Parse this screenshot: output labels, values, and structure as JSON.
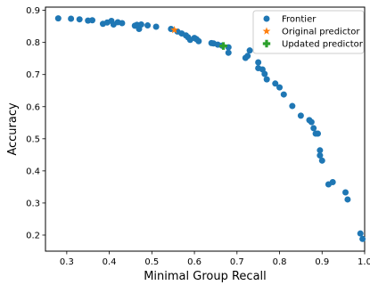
{
  "chart_data": {
    "type": "scatter",
    "xlabel": "Minimal Group Recall",
    "ylabel": "Accuracy",
    "xlim": [
      0.25,
      1.0
    ],
    "ylim": [
      0.15,
      0.91
    ],
    "xticks": [
      0.3,
      0.4,
      0.5,
      0.6,
      0.7,
      0.8,
      0.9,
      1.0
    ],
    "xtick_labels": [
      "0.3",
      "0.4",
      "0.5",
      "0.6",
      "0.7",
      "0.8",
      "0.9",
      "1.0"
    ],
    "yticks": [
      0.2,
      0.3,
      0.4,
      0.5,
      0.6,
      0.7,
      0.8,
      0.9
    ],
    "ytick_labels": [
      "0.2",
      "0.3",
      "0.4",
      "0.5",
      "0.6",
      "0.7",
      "0.8",
      "0.9"
    ],
    "grid": false,
    "legend_position": "top-right",
    "series": [
      {
        "name": "Frontier",
        "marker": "circle",
        "color": "#1f77b4",
        "points": [
          [
            0.28,
            0.875
          ],
          [
            0.31,
            0.874
          ],
          [
            0.33,
            0.872
          ],
          [
            0.35,
            0.868
          ],
          [
            0.36,
            0.869
          ],
          [
            0.385,
            0.858
          ],
          [
            0.395,
            0.862
          ],
          [
            0.405,
            0.867
          ],
          [
            0.41,
            0.856
          ],
          [
            0.42,
            0.863
          ],
          [
            0.43,
            0.86
          ],
          [
            0.46,
            0.852
          ],
          [
            0.465,
            0.855
          ],
          [
            0.47,
            0.842
          ],
          [
            0.475,
            0.856
          ],
          [
            0.49,
            0.853
          ],
          [
            0.51,
            0.849
          ],
          [
            0.545,
            0.842
          ],
          [
            0.56,
            0.834
          ],
          [
            0.57,
            0.828
          ],
          [
            0.58,
            0.822
          ],
          [
            0.585,
            0.816
          ],
          [
            0.59,
            0.808
          ],
          [
            0.6,
            0.814
          ],
          [
            0.605,
            0.81
          ],
          [
            0.61,
            0.804
          ],
          [
            0.64,
            0.798
          ],
          [
            0.645,
            0.797
          ],
          [
            0.655,
            0.793
          ],
          [
            0.665,
            0.79
          ],
          [
            0.68,
            0.785
          ],
          [
            0.68,
            0.768
          ],
          [
            0.72,
            0.752
          ],
          [
            0.725,
            0.758
          ],
          [
            0.73,
            0.775
          ],
          [
            0.75,
            0.738
          ],
          [
            0.75,
            0.72
          ],
          [
            0.76,
            0.716
          ],
          [
            0.765,
            0.702
          ],
          [
            0.77,
            0.685
          ],
          [
            0.79,
            0.672
          ],
          [
            0.8,
            0.66
          ],
          [
            0.81,
            0.638
          ],
          [
            0.83,
            0.602
          ],
          [
            0.85,
            0.572
          ],
          [
            0.87,
            0.558
          ],
          [
            0.875,
            0.552
          ],
          [
            0.88,
            0.533
          ],
          [
            0.885,
            0.516
          ],
          [
            0.89,
            0.516
          ],
          [
            0.895,
            0.464
          ],
          [
            0.895,
            0.448
          ],
          [
            0.9,
            0.432
          ],
          [
            0.915,
            0.358
          ],
          [
            0.925,
            0.365
          ],
          [
            0.955,
            0.333
          ],
          [
            0.96,
            0.311
          ],
          [
            0.99,
            0.205
          ],
          [
            0.995,
            0.188
          ]
        ]
      },
      {
        "name": "Original predictor",
        "marker": "star",
        "color": "#ff7f0e",
        "points": [
          [
            0.553,
            0.839
          ]
        ]
      },
      {
        "name": "Updated predictor",
        "marker": "plus",
        "color": "#2ca02c",
        "points": [
          [
            0.668,
            0.789
          ]
        ]
      }
    ]
  }
}
